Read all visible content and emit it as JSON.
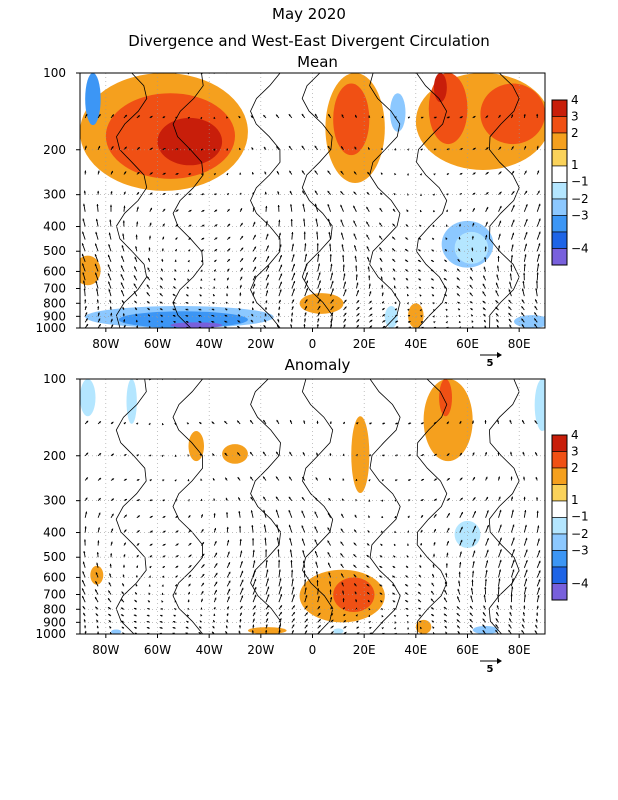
{
  "header": {
    "title": "May 2020",
    "subtitle": "Divergence and West-East Divergent Circulation"
  },
  "colors": {
    "levels": [
      {
        "label": "4",
        "color": "#c81e0a"
      },
      {
        "label": "3",
        "color": "#f05014"
      },
      {
        "label": "2",
        "color": "#f5a01e"
      },
      {
        "label": "",
        "color": "#fad25a"
      },
      {
        "label": "1",
        "color": "#ffffff"
      },
      {
        "label": "−1",
        "color": "#b4e6ff"
      },
      {
        "label": "−2",
        "color": "#8cc8ff"
      },
      {
        "label": "−3",
        "color": "#3c96f5"
      },
      {
        "label": "",
        "color": "#1e64e6"
      },
      {
        "label": "−4",
        "color": "#7860dc"
      }
    ]
  },
  "chart_data": [
    {
      "type": "heatmap",
      "title": "Mean",
      "x_ticks": [
        "80W",
        "60W",
        "40W",
        "20W",
        "0",
        "20E",
        "40E",
        "60E",
        "80E"
      ],
      "x_tick_values": [
        -80,
        -60,
        -40,
        -20,
        0,
        20,
        40,
        60,
        80
      ],
      "xlim": [
        -90,
        90
      ],
      "y_ticks": [
        "100",
        "200",
        "300",
        "400",
        "500",
        "600",
        "700",
        "800",
        "900",
        "1000"
      ],
      "y_tick_values": [
        100,
        200,
        300,
        400,
        500,
        600,
        700,
        800,
        900,
        1000
      ],
      "ylim": [
        1000,
        100
      ],
      "yscale": "log",
      "reference_vector": "5",
      "regions": [
        {
          "x0": -90,
          "x1": -25,
          "p0": 100,
          "p1": 290,
          "level": 2
        },
        {
          "x0": -80,
          "x1": -30,
          "p0": 120,
          "p1": 260,
          "level": 1
        },
        {
          "x0": -60,
          "x1": -35,
          "p0": 150,
          "p1": 230,
          "level": 0
        },
        {
          "x0": -88,
          "x1": -82,
          "p0": 100,
          "p1": 160,
          "level": 7
        },
        {
          "x0": -92,
          "x1": -82,
          "p0": 520,
          "p1": 680,
          "level": 2
        },
        {
          "x0": 5,
          "x1": 28,
          "p0": 100,
          "p1": 270,
          "level": 2
        },
        {
          "x0": 8,
          "x1": 22,
          "p0": 110,
          "p1": 210,
          "level": 1
        },
        {
          "x0": 40,
          "x1": 92,
          "p0": 100,
          "p1": 240,
          "level": 2
        },
        {
          "x0": 45,
          "x1": 60,
          "p0": 100,
          "p1": 190,
          "level": 1
        },
        {
          "x0": 65,
          "x1": 90,
          "p0": 110,
          "p1": 190,
          "level": 1
        },
        {
          "x0": 47,
          "x1": 52,
          "p0": 100,
          "p1": 130,
          "level": 0
        },
        {
          "x0": -88,
          "x1": -15,
          "p0": 820,
          "p1": 1000,
          "level": 6
        },
        {
          "x0": -75,
          "x1": -25,
          "p0": 860,
          "p1": 1000,
          "level": 7
        },
        {
          "x0": -55,
          "x1": -35,
          "p0": 950,
          "p1": 1000,
          "level": 9
        },
        {
          "x0": -5,
          "x1": 12,
          "p0": 730,
          "p1": 880,
          "level": 2
        },
        {
          "x0": 28,
          "x1": 33,
          "p0": 820,
          "p1": 1000,
          "level": 5
        },
        {
          "x0": 37,
          "x1": 43,
          "p0": 800,
          "p1": 1000,
          "level": 2
        },
        {
          "x0": 50,
          "x1": 70,
          "p0": 380,
          "p1": 580,
          "level": 6
        },
        {
          "x0": 55,
          "x1": 68,
          "p0": 420,
          "p1": 560,
          "level": 5
        },
        {
          "x0": 78,
          "x1": 92,
          "p0": 890,
          "p1": 1000,
          "level": 6
        },
        {
          "x0": 30,
          "x1": 36,
          "p0": 120,
          "p1": 170,
          "level": 6
        }
      ]
    },
    {
      "type": "heatmap",
      "title": "Anomaly",
      "x_ticks": [
        "80W",
        "60W",
        "40W",
        "20W",
        "0",
        "20E",
        "40E",
        "60E",
        "80E"
      ],
      "x_tick_values": [
        -80,
        -60,
        -40,
        -20,
        0,
        20,
        40,
        60,
        80
      ],
      "xlim": [
        -90,
        90
      ],
      "y_ticks": [
        "100",
        "200",
        "300",
        "400",
        "500",
        "600",
        "700",
        "800",
        "900",
        "1000"
      ],
      "y_tick_values": [
        100,
        200,
        300,
        400,
        500,
        600,
        700,
        800,
        900,
        1000
      ],
      "ylim": [
        1000,
        100
      ],
      "yscale": "log",
      "reference_vector": "5",
      "regions": [
        {
          "x0": -90,
          "x1": -84,
          "p0": 100,
          "p1": 140,
          "level": 5
        },
        {
          "x0": -72,
          "x1": -68,
          "p0": 100,
          "p1": 150,
          "level": 5
        },
        {
          "x0": -48,
          "x1": -42,
          "p0": 160,
          "p1": 210,
          "level": 2
        },
        {
          "x0": -35,
          "x1": -25,
          "p0": 180,
          "p1": 215,
          "level": 2
        },
        {
          "x0": 15,
          "x1": 22,
          "p0": 140,
          "p1": 280,
          "level": 2
        },
        {
          "x0": 43,
          "x1": 62,
          "p0": 100,
          "p1": 210,
          "level": 2
        },
        {
          "x0": 49,
          "x1": 54,
          "p0": 100,
          "p1": 140,
          "level": 1
        },
        {
          "x0": 86,
          "x1": 92,
          "p0": 100,
          "p1": 160,
          "level": 5
        },
        {
          "x0": 55,
          "x1": 65,
          "p0": 360,
          "p1": 460,
          "level": 5
        },
        {
          "x0": -86,
          "x1": -81,
          "p0": 540,
          "p1": 640,
          "level": 2
        },
        {
          "x0": -5,
          "x1": 28,
          "p0": 560,
          "p1": 900,
          "level": 2
        },
        {
          "x0": 8,
          "x1": 24,
          "p0": 600,
          "p1": 820,
          "level": 1
        },
        {
          "x0": -25,
          "x1": -10,
          "p0": 940,
          "p1": 1000,
          "level": 2
        },
        {
          "x0": 8,
          "x1": 12,
          "p0": 950,
          "p1": 1000,
          "level": 5
        },
        {
          "x0": 40,
          "x1": 46,
          "p0": 880,
          "p1": 1000,
          "level": 2
        },
        {
          "x0": 62,
          "x1": 72,
          "p0": 930,
          "p1": 1000,
          "level": 6
        },
        {
          "x0": -78,
          "x1": -74,
          "p0": 960,
          "p1": 1000,
          "level": 6
        }
      ]
    }
  ]
}
